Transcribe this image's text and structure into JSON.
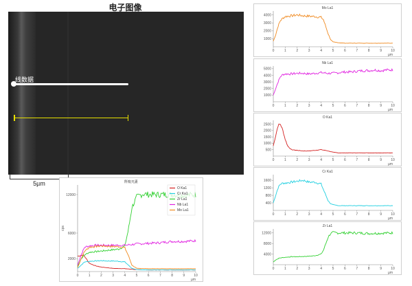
{
  "sem": {
    "title": "电子图像",
    "line_label": "线数据",
    "scalebar": "5µm"
  },
  "chart_data": [
    {
      "type": "line",
      "title": "所有元素",
      "xlim": [
        0,
        10
      ],
      "ylim": [
        0,
        13500
      ],
      "xticks": [
        0,
        1,
        2,
        3,
        4,
        5,
        6,
        7,
        8,
        9,
        10
      ],
      "yticks": [
        2000,
        6000,
        12000
      ],
      "ylabel": "cps",
      "xlabel": "µm",
      "legend_position": "top-right",
      "series": [
        {
          "name": "O Ka1",
          "color": "#d42020",
          "x": [
            0,
            0.5,
            1,
            1.5,
            2,
            3,
            4,
            5,
            6,
            7,
            8,
            9,
            10
          ],
          "y": [
            2400,
            2600,
            1300,
            900,
            700,
            500,
            450,
            300,
            250,
            250,
            250,
            250,
            250
          ]
        },
        {
          "name": "Cr Ka1",
          "color": "#20cfe0",
          "x": [
            0,
            0.3,
            0.6,
            1,
            1.5,
            2,
            2.5,
            3,
            3.5,
            4,
            4.3,
            4.6,
            5,
            6,
            7,
            8,
            9,
            10
          ],
          "y": [
            500,
            1000,
            1500,
            1600,
            1650,
            1700,
            1650,
            1650,
            1600,
            1500,
            1000,
            500,
            300,
            250,
            250,
            250,
            250,
            250
          ]
        },
        {
          "name": "Zr La1",
          "color": "#30d030",
          "x": [
            0,
            0.3,
            0.6,
            1,
            1.5,
            2,
            2.5,
            3,
            3.5,
            4,
            4.3,
            4.6,
            5,
            5.5,
            6,
            7,
            8,
            9,
            10
          ],
          "y": [
            800,
            2000,
            2600,
            3000,
            3100,
            3200,
            3300,
            3400,
            3500,
            4000,
            6500,
            10000,
            11600,
            12100,
            12000,
            12000,
            12000,
            11900,
            12000
          ]
        },
        {
          "name": "Nb La1",
          "color": "#e020e0",
          "x": [
            0,
            0.3,
            0.6,
            1,
            1.5,
            2,
            3,
            4,
            5,
            6,
            7,
            8,
            9,
            10
          ],
          "y": [
            1000,
            2600,
            3800,
            4000,
            4100,
            4100,
            4100,
            4100,
            4300,
            4400,
            4500,
            4700,
            4700,
            4800
          ]
        },
        {
          "name": "Mo La1",
          "color": "#f08a20",
          "x": [
            0,
            0.3,
            0.6,
            1,
            1.5,
            2,
            2.5,
            3,
            3.5,
            4,
            4.3,
            4.6,
            5,
            6,
            7,
            8,
            9,
            10
          ],
          "y": [
            600,
            2000,
            3200,
            3800,
            3900,
            4000,
            3950,
            3900,
            3900,
            3700,
            2500,
            1000,
            500,
            450,
            450,
            450,
            450,
            450
          ]
        }
      ]
    },
    {
      "type": "line",
      "title": "Mo La1",
      "color": "#f08a20",
      "xlim": [
        0,
        10
      ],
      "ylim": [
        0,
        4500
      ],
      "xticks": [
        0,
        1,
        2,
        3,
        4,
        5,
        6,
        7,
        8,
        9,
        10
      ],
      "yticks": [
        1000,
        2000,
        3000,
        4000
      ],
      "xlabel": "µm",
      "x": [
        0,
        0.2,
        0.4,
        0.6,
        0.8,
        1,
        1.5,
        2,
        2.5,
        3,
        3.5,
        4,
        4.2,
        4.4,
        4.6,
        4.8,
        5,
        5.5,
        6,
        7,
        8,
        9,
        10
      ],
      "y": [
        700,
        1500,
        2600,
        3300,
        3600,
        3800,
        3900,
        4000,
        3900,
        3850,
        3800,
        3700,
        3400,
        2500,
        1600,
        900,
        600,
        500,
        450,
        450,
        450,
        450,
        450
      ]
    },
    {
      "type": "line",
      "title": "Nb La1",
      "color": "#e020e0",
      "xlim": [
        0,
        10
      ],
      "ylim": [
        0,
        5400
      ],
      "xticks": [
        0,
        1,
        2,
        3,
        4,
        5,
        6,
        7,
        8,
        9,
        10
      ],
      "yticks": [
        1000,
        2000,
        3000,
        4000,
        5000
      ],
      "xlabel": "µm",
      "x": [
        0,
        0.2,
        0.4,
        0.6,
        0.8,
        1,
        1.5,
        2,
        2.5,
        3,
        3.5,
        4,
        4.5,
        5,
        5.5,
        6,
        6.5,
        7,
        7.5,
        8,
        8.5,
        9,
        9.5,
        10
      ],
      "y": [
        1000,
        2000,
        3000,
        3800,
        4100,
        4200,
        4200,
        4300,
        4300,
        4200,
        4300,
        4400,
        4300,
        4300,
        4400,
        4500,
        4500,
        4600,
        4700,
        4700,
        4800,
        4700,
        4800,
        4800
      ]
    },
    {
      "type": "line",
      "title": "O Ka1",
      "color": "#d42020",
      "xlim": [
        0,
        10
      ],
      "ylim": [
        0,
        2800
      ],
      "xticks": [
        0,
        1,
        2,
        3,
        4,
        5,
        6,
        7,
        8,
        9,
        10
      ],
      "yticks": [
        500,
        1000,
        1500,
        2000,
        2500
      ],
      "xlabel": "µm",
      "x": [
        0,
        0.2,
        0.4,
        0.6,
        0.8,
        1,
        1.2,
        1.5,
        2,
        2.5,
        3,
        3.5,
        4,
        4.5,
        5,
        5.5,
        6,
        7,
        8,
        9,
        10
      ],
      "y": [
        800,
        1600,
        2400,
        2500,
        2000,
        1300,
        800,
        500,
        450,
        400,
        400,
        450,
        500,
        420,
        300,
        250,
        250,
        250,
        250,
        250,
        250
      ]
    },
    {
      "type": "line",
      "title": "Cr Ka1",
      "color": "#20cfe0",
      "xlim": [
        0,
        10
      ],
      "ylim": [
        0,
        1900
      ],
      "xticks": [
        0,
        1,
        2,
        3,
        4,
        5,
        6,
        7,
        8,
        9,
        10
      ],
      "yticks": [
        400,
        800,
        1200,
        1600
      ],
      "xlabel": "µm",
      "x": [
        0,
        0.2,
        0.4,
        0.6,
        0.8,
        1,
        1.5,
        2,
        2.5,
        3,
        3.5,
        4,
        4.2,
        4.4,
        4.6,
        4.8,
        5,
        5.5,
        6,
        7,
        8,
        9,
        10
      ],
      "y": [
        400,
        800,
        1200,
        1400,
        1450,
        1450,
        1500,
        1550,
        1600,
        1500,
        1500,
        1400,
        1100,
        800,
        500,
        350,
        300,
        250,
        250,
        250,
        250,
        250,
        250
      ]
    },
    {
      "type": "line",
      "title": "Zr La1",
      "color": "#30d030",
      "xlim": [
        0,
        10
      ],
      "ylim": [
        0,
        13500
      ],
      "xticks": [
        0,
        1,
        2,
        3,
        4,
        5,
        6,
        7,
        8,
        9,
        10
      ],
      "yticks": [
        4000,
        8000,
        12000
      ],
      "xlabel": "µm",
      "x": [
        0,
        0.2,
        0.5,
        1,
        1.5,
        2,
        2.5,
        3,
        3.5,
        4,
        4.2,
        4.4,
        4.6,
        4.8,
        5,
        5.5,
        6,
        7,
        8,
        9,
        10
      ],
      "y": [
        1000,
        1800,
        2500,
        2800,
        3000,
        3000,
        3100,
        3200,
        3400,
        4000,
        5500,
        8000,
        10500,
        11800,
        12100,
        12000,
        12000,
        12000,
        11800,
        11900,
        12000
      ]
    }
  ]
}
